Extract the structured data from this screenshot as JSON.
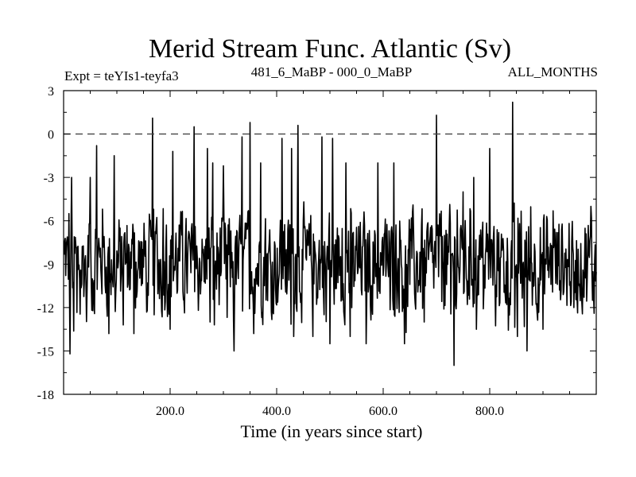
{
  "chart_data": {
    "type": "line",
    "title": "Merid Stream Func. Atlantic (Sv)",
    "left_note": "Expt = teYIs1-teyfa3",
    "center_note": "481_6_MaBP - 000_0_MaBP",
    "right_note": "ALL_MONTHS",
    "xlabel": "Time (in years since start)",
    "ylabel": "",
    "xlim": [
      0,
      1000
    ],
    "ylim": [
      -18,
      3
    ],
    "x_ticks": [
      200,
      400,
      600,
      800
    ],
    "x_tick_labels": [
      "200.0",
      "400.0",
      "600.0",
      "800.0"
    ],
    "y_ticks": [
      3,
      0,
      -3,
      -6,
      -9,
      -12,
      -15,
      -18
    ],
    "y_tick_labels": [
      "3",
      "0",
      "-3",
      "-6",
      "-9",
      "-12",
      "-15",
      "-18"
    ],
    "reference_line": 0,
    "series": [
      {
        "color": "#000000",
        "x_start": 1,
        "x_step": 1,
        "count": 1000,
        "baseline_mean": -9,
        "typical_range": [
          -13,
          -5
        ],
        "peaks": [
          [
            10,
            -5.5
          ],
          [
            15,
            -3
          ],
          [
            50,
            -3
          ],
          [
            62,
            -0.8
          ],
          [
            95,
            -1.5
          ],
          [
            167,
            1.1
          ],
          [
            205,
            -1.2
          ],
          [
            245,
            0.5
          ],
          [
            270,
            -1
          ],
          [
            280,
            -2
          ],
          [
            300,
            -2.2
          ],
          [
            320,
            -2.5
          ],
          [
            335,
            -0.2
          ],
          [
            350,
            0.8
          ],
          [
            370,
            -2
          ],
          [
            410,
            -0.3
          ],
          [
            428,
            -1
          ],
          [
            440,
            0.6
          ],
          [
            485,
            -0.2
          ],
          [
            505,
            -0.3
          ],
          [
            530,
            -2
          ],
          [
            590,
            -2
          ],
          [
            620,
            -2
          ],
          [
            640,
            -2.5
          ],
          [
            700,
            1.3
          ],
          [
            750,
            -4
          ],
          [
            770,
            -3
          ],
          [
            800,
            -1
          ],
          [
            843,
            2.2
          ],
          [
            870,
            -2
          ],
          [
            990,
            -5
          ]
        ],
        "troughs": [
          [
            12,
            -15.2
          ],
          [
            85,
            -13.8
          ],
          [
            112,
            -13.2
          ],
          [
            132,
            -13.8
          ],
          [
            170,
            -12.5
          ],
          [
            200,
            -13.5
          ],
          [
            275,
            -13
          ],
          [
            320,
            -15
          ],
          [
            357,
            -13.8
          ],
          [
            432,
            -14
          ],
          [
            468,
            -14
          ],
          [
            500,
            -14.5
          ],
          [
            538,
            -14
          ],
          [
            568,
            -14.5
          ],
          [
            640,
            -14.5
          ],
          [
            677,
            -13
          ],
          [
            733,
            -16
          ],
          [
            775,
            -13.5
          ],
          [
            852,
            -14
          ],
          [
            870,
            -15
          ],
          [
            900,
            -13.5
          ],
          [
            958,
            -12
          ],
          [
            993,
            -11.5
          ]
        ]
      }
    ]
  }
}
